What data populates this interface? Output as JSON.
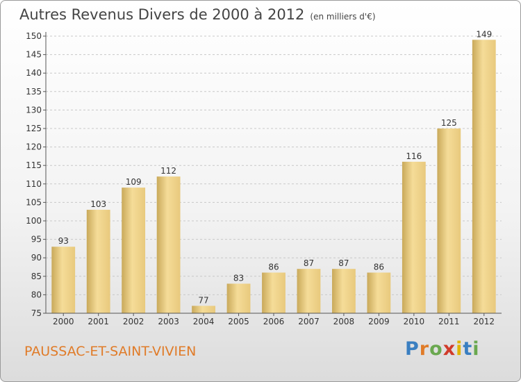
{
  "header": {
    "title": "Autres Revenus Divers de 2000 à 2012",
    "unit": "(en milliers d'€)"
  },
  "footer": {
    "place": "PAUSSAC-ET-SAINT-VIVIEN",
    "logo_letters": [
      "P",
      "r",
      "o",
      "x",
      "i",
      "t",
      "i"
    ],
    "logo_colors": [
      "#3a7fc1",
      "#e07b28",
      "#6aa84f",
      "#d03b2a",
      "#e0b400",
      "#3a7fc1",
      "#6aa84f"
    ]
  },
  "chart_data": {
    "type": "bar",
    "categories": [
      "2000",
      "2001",
      "2002",
      "2003",
      "2004",
      "2005",
      "2006",
      "2007",
      "2008",
      "2009",
      "2010",
      "2011",
      "2012"
    ],
    "values": [
      93,
      103,
      109,
      112,
      77,
      83,
      86,
      87,
      87,
      86,
      116,
      125,
      149
    ],
    "ylim": [
      75,
      150
    ],
    "yticks": [
      75,
      80,
      85,
      90,
      95,
      100,
      105,
      110,
      115,
      120,
      125,
      130,
      135,
      140,
      145,
      150
    ],
    "grid": "horizontal-dashed",
    "bar_color": "#e8c97d",
    "bar_color_light": "#f5dc98",
    "bar_color_dark": "#c9a95a"
  }
}
